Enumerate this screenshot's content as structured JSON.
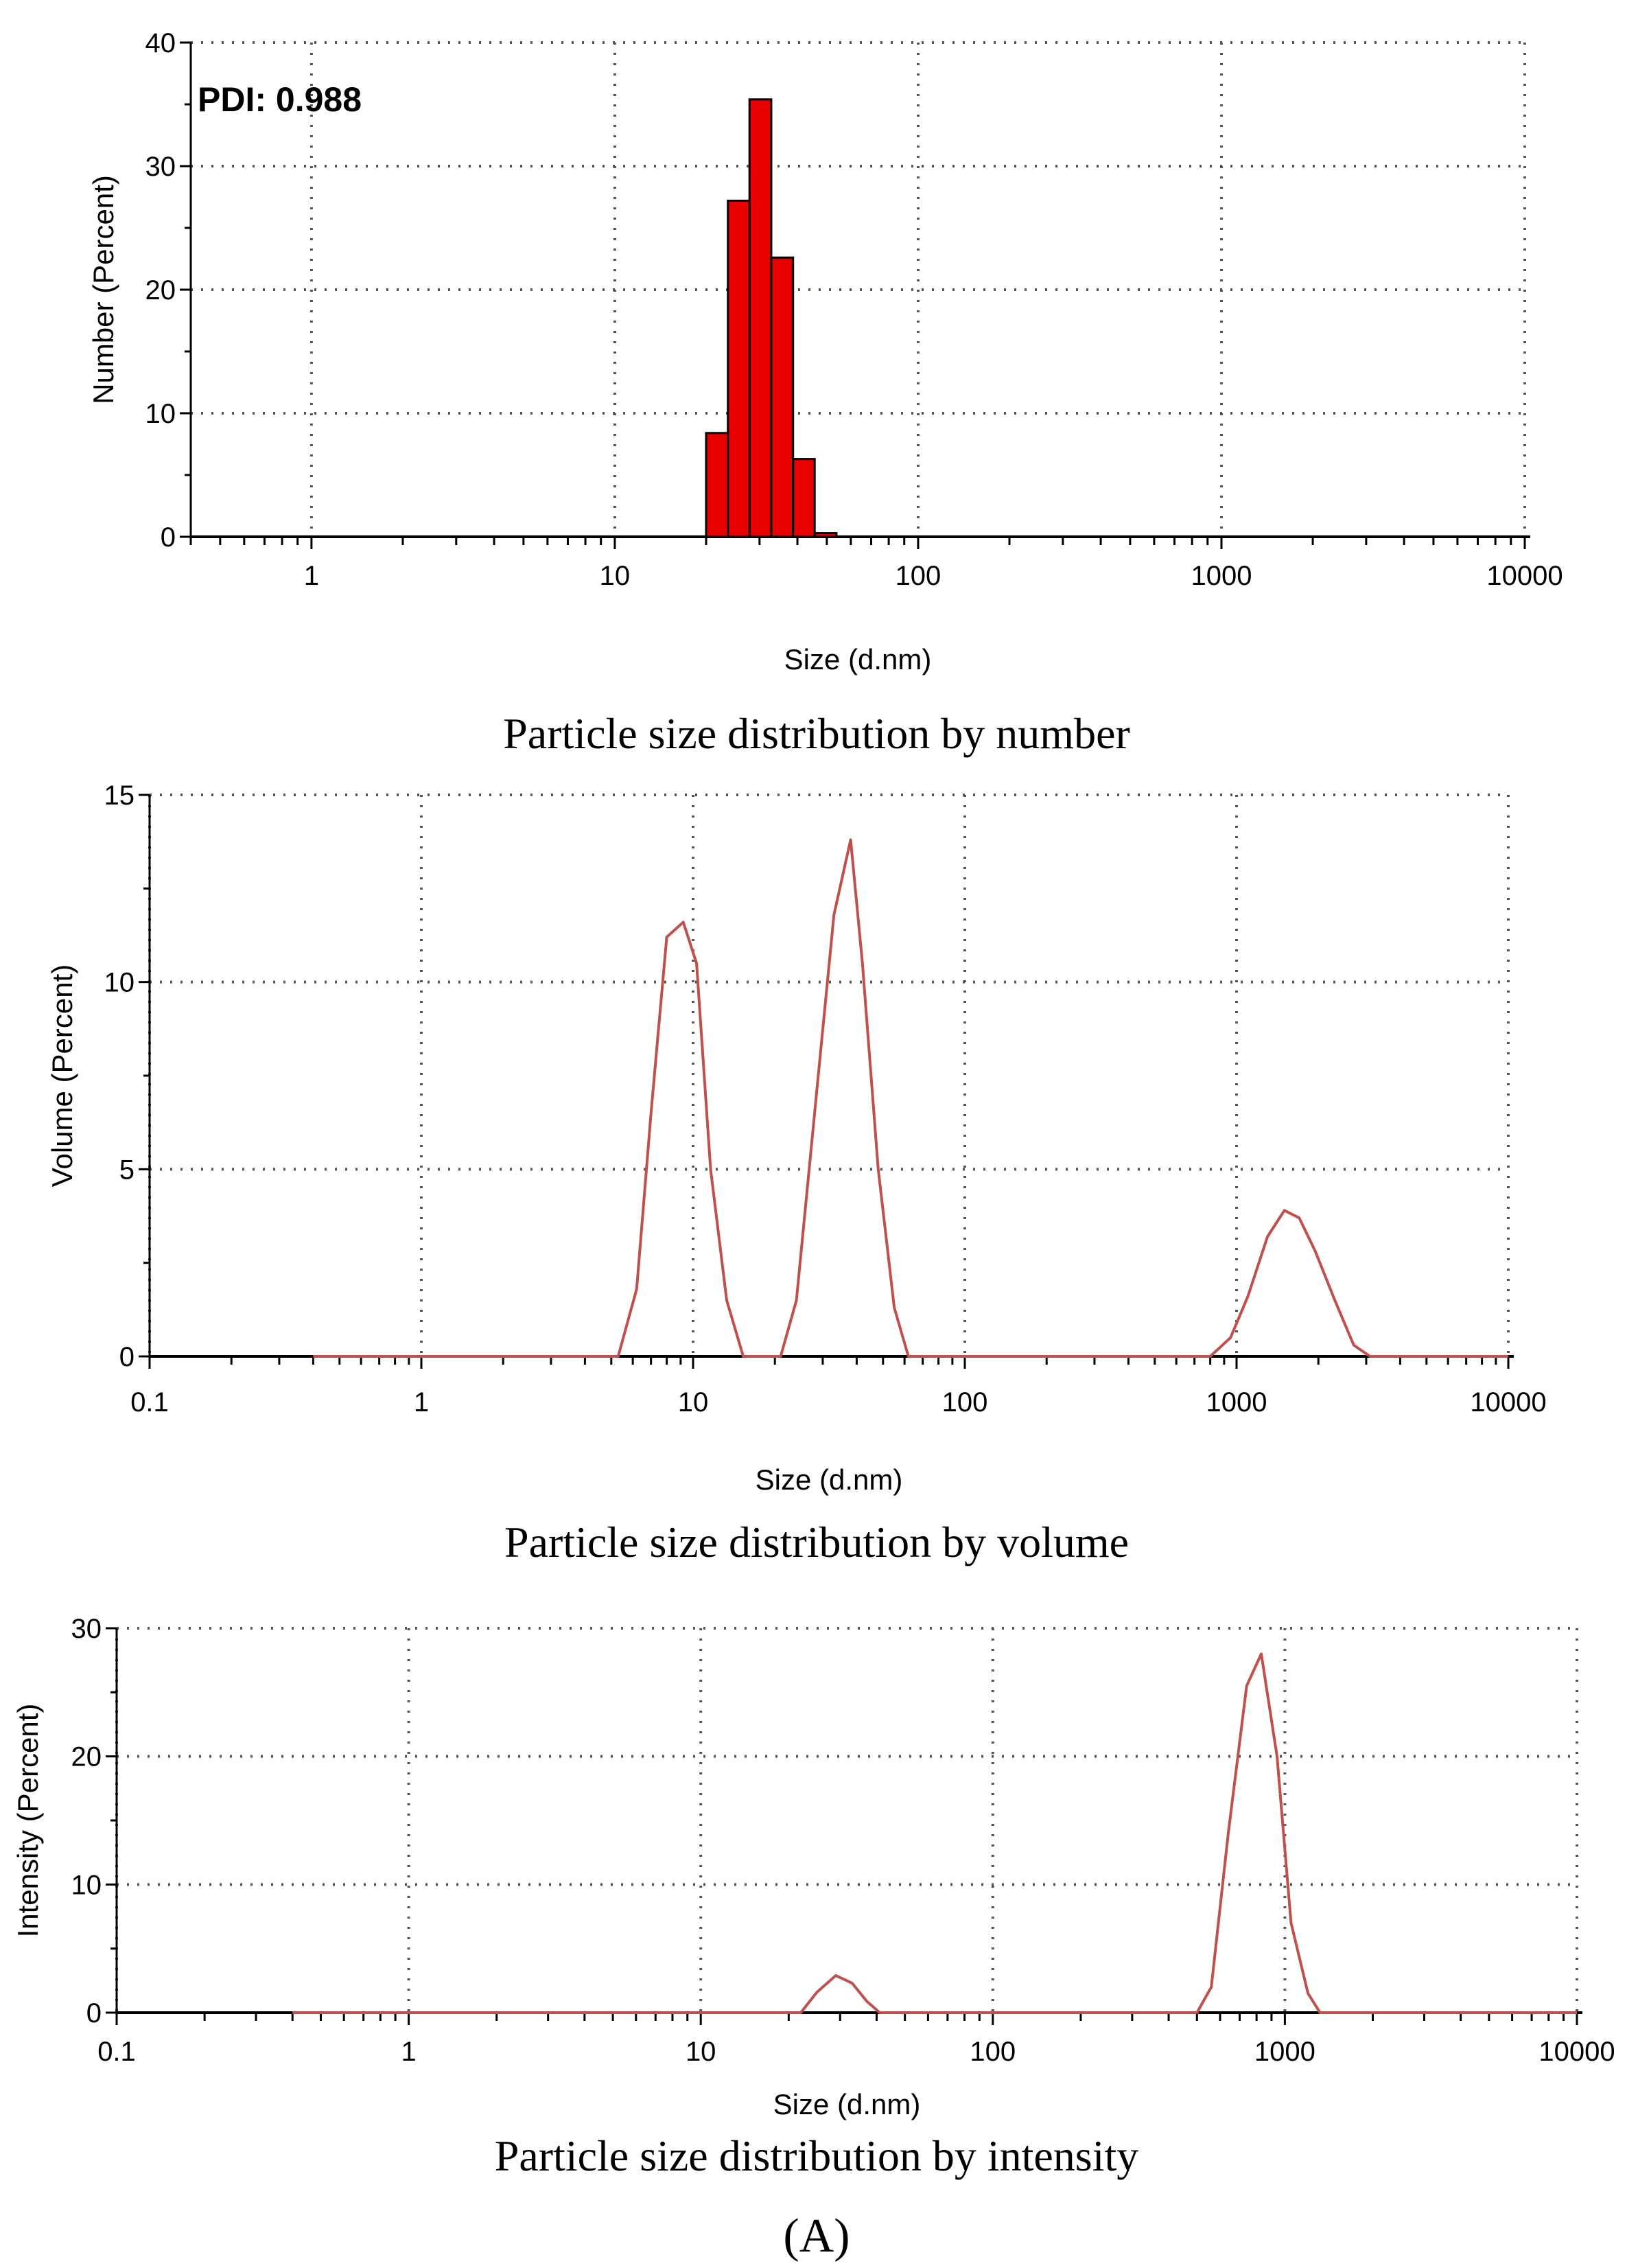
{
  "panel_label": "(A)",
  "chart_data": [
    {
      "type": "bar",
      "caption": "Particle size distribution by number",
      "xlabel": "Size (d.nm)",
      "ylabel": "Number (Percent)",
      "xscale": "log",
      "xlim": [
        0.4,
        10000
      ],
      "ylim": [
        0,
        40
      ],
      "xticks": [
        1,
        10,
        100,
        1000,
        10000
      ],
      "xtick_labels": [
        "1",
        "10",
        "100",
        "1000",
        "10000"
      ],
      "yticks": [
        0,
        10,
        20,
        30,
        40
      ],
      "ytick_labels": [
        "0",
        "10",
        "20",
        "30",
        "40"
      ],
      "grid": true,
      "annotation": "PDI: 0.988",
      "color": "#e60000",
      "bars": [
        {
          "x0": 20.0,
          "x1": 23.6,
          "value": 8.4
        },
        {
          "x0": 23.6,
          "x1": 27.8,
          "value": 27.2
        },
        {
          "x0": 27.8,
          "x1": 32.8,
          "value": 35.4
        },
        {
          "x0": 32.8,
          "x1": 38.7,
          "value": 22.6
        },
        {
          "x0": 38.7,
          "x1": 45.6,
          "value": 6.3
        },
        {
          "x0": 45.6,
          "x1": 53.8,
          "value": 0.3
        }
      ]
    },
    {
      "type": "line",
      "caption": "Particle size distribution by volume",
      "xlabel": "Size (d.nm)",
      "ylabel": "Volume (Percent)",
      "xscale": "log",
      "xlim": [
        0.1,
        10000
      ],
      "ylim": [
        0,
        15
      ],
      "xticks": [
        0.1,
        1,
        10,
        100,
        1000,
        10000
      ],
      "xtick_labels": [
        "0.1",
        "1",
        "10",
        "100",
        "1000",
        "10000"
      ],
      "yticks": [
        0,
        5,
        10,
        15
      ],
      "ytick_labels": [
        "0",
        "5",
        "10",
        "15"
      ],
      "grid": true,
      "color": "#c0504d",
      "series": [
        {
          "x": [
            0.4,
            5.3,
            6.2,
            7.0,
            8.0,
            9.2,
            10.3,
            11.6,
            13.3,
            15.3,
            17.0,
            21.0,
            24.0,
            28.0,
            33.0,
            38.0,
            42.0,
            48.0,
            55.0,
            62.0,
            70.0,
            800,
            950,
            1100,
            1300,
            1500,
            1700,
            1950,
            2300,
            2700,
            3100,
            10000
          ],
          "y": [
            0,
            0,
            1.8,
            6.5,
            11.2,
            11.6,
            10.5,
            5.0,
            1.5,
            0,
            0,
            0,
            1.5,
            6.5,
            11.8,
            13.8,
            10.5,
            5.0,
            1.3,
            0,
            0,
            0,
            0.5,
            1.6,
            3.2,
            3.9,
            3.7,
            2.8,
            1.5,
            0.3,
            0,
            0
          ]
        }
      ]
    },
    {
      "type": "line",
      "caption": "Particle size distribution by intensity",
      "xlabel": "Size (d.nm)",
      "ylabel": "Intensity (Percent)",
      "xscale": "log",
      "xlim": [
        0.1,
        10000
      ],
      "ylim": [
        0,
        30
      ],
      "xticks": [
        0.1,
        1,
        10,
        100,
        1000,
        10000
      ],
      "xtick_labels": [
        "0.1",
        "1",
        "10",
        "100",
        "1000",
        "10000"
      ],
      "yticks": [
        0,
        10,
        20,
        30
      ],
      "ytick_labels": [
        "0",
        "10",
        "20",
        "30"
      ],
      "grid": true,
      "color": "#c0504d",
      "series": [
        {
          "x": [
            0.4,
            22.0,
            25.0,
            29.0,
            33.0,
            37.0,
            41.0,
            500,
            560,
            640,
            740,
            830,
            940,
            1050,
            1200,
            1320,
            10000
          ],
          "y": [
            0,
            0,
            1.6,
            2.9,
            2.3,
            0.9,
            0,
            0,
            2.0,
            14.0,
            25.5,
            28.0,
            20.0,
            7.0,
            1.5,
            0,
            0
          ]
        }
      ]
    }
  ]
}
